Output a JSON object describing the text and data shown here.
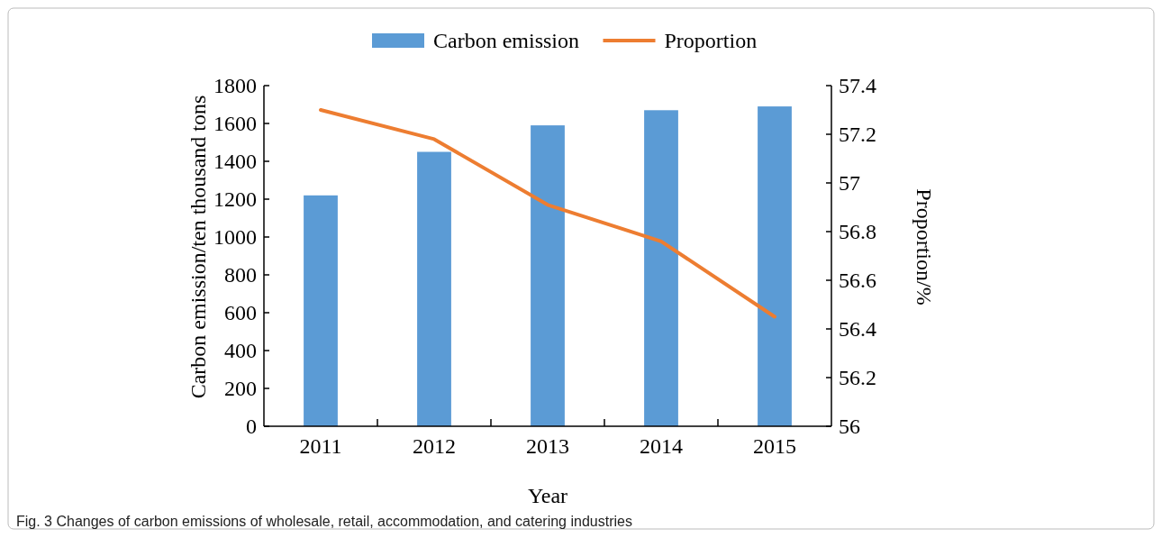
{
  "chart_data": {
    "type": "bar",
    "xlabel": "Year",
    "ylabel": "Carbon emission/ten thousand tons",
    "y2label": "Proportion/%",
    "categories": [
      "2011",
      "2012",
      "2013",
      "2014",
      "2015"
    ],
    "series": [
      {
        "name": "Carbon emission",
        "color": "#5b9bd5",
        "values": [
          1220,
          1450,
          1590,
          1670,
          1690
        ]
      },
      {
        "name": "Proportion",
        "type": "line",
        "axis": "y2",
        "color": "#ed7d31",
        "values": [
          57.3,
          57.18,
          56.91,
          56.76,
          56.45
        ]
      }
    ],
    "ylim": [
      0,
      1800
    ],
    "yticks": [
      0,
      200,
      400,
      600,
      800,
      1000,
      1200,
      1400,
      1600,
      1800
    ],
    "y2lim": [
      56,
      57.4
    ],
    "y2ticks": [
      56,
      {
        "value": 56.2,
        "label": "56.2"
      },
      {
        "value": 56.4,
        "label": "56.4"
      },
      {
        "value": 56.6,
        "label": "56.6"
      },
      {
        "value": 56.8,
        "label": "56.8"
      },
      57,
      {
        "value": 57.2,
        "label": "57.2"
      },
      {
        "value": 57.4,
        "label": "57.4"
      }
    ],
    "legend": "top",
    "marker": "none",
    "annotations": [
      "Fig. 3 Changes of carbon emissions of wholesale, retail, accommodation, and catering industries"
    ]
  }
}
